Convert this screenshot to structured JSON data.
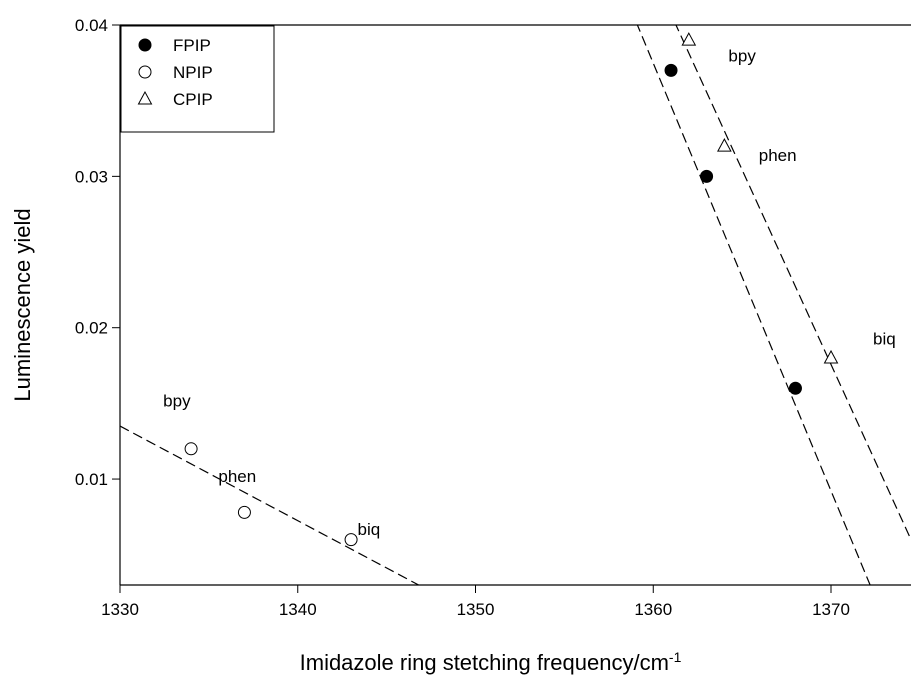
{
  "chart_data": {
    "type": "scatter",
    "xlabel": "Imidazole ring stetching frequency/cm",
    "xlabel_superscript": "-1",
    "ylabel": "Luminescence yield",
    "xlim": [
      1330,
      1374.5
    ],
    "ylim": [
      0.003,
      0.04
    ],
    "x_ticks": [
      1330,
      1340,
      1350,
      1360,
      1370
    ],
    "x_tick_labels": [
      "1330",
      "1340",
      "1350",
      "1360",
      "1370"
    ],
    "y_ticks": [
      0.01,
      0.02,
      0.03,
      0.04
    ],
    "y_tick_labels": [
      "0.01",
      "0.02",
      "0.03",
      "0.04"
    ],
    "grid": false,
    "legend_position": "top-left",
    "series": [
      {
        "name": "FPIP",
        "marker": "filled-circle",
        "x": [
          1361,
          1363,
          1368
        ],
        "y": [
          0.037,
          0.03,
          0.016
        ],
        "fit_line": [
          [
            1358.4,
            0.042
          ],
          [
            1372.2,
            0.003
          ]
        ]
      },
      {
        "name": "NPIP",
        "marker": "open-circle",
        "x": [
          1334,
          1337,
          1343
        ],
        "y": [
          0.012,
          0.0078,
          0.006
        ],
        "fit_line": [
          [
            1330,
            0.0135
          ],
          [
            1346.8,
            0.003
          ]
        ]
      },
      {
        "name": "CPIP",
        "marker": "open-triangle",
        "x": [
          1362,
          1364,
          1370
        ],
        "y": [
          0.039,
          0.032,
          0.018
        ],
        "fit_line": [
          [
            1360.5,
            0.042
          ],
          [
            1374.5,
            0.006
          ]
        ]
      }
    ],
    "annotations": [
      {
        "text": "bpy",
        "x": 1365.0,
        "y": 0.0376
      },
      {
        "text": "phen",
        "x": 1367.0,
        "y": 0.031
      },
      {
        "text": "biq",
        "x": 1373.0,
        "y": 0.0189
      },
      {
        "text": "bpy",
        "x": 1333.2,
        "y": 0.0148
      },
      {
        "text": "phen",
        "x": 1336.6,
        "y": 0.0098
      },
      {
        "text": "biq",
        "x": 1344.0,
        "y": 0.0063
      }
    ]
  },
  "colors": {
    "axis": "#000000",
    "marker_fill": "#000000",
    "background": "#ffffff"
  }
}
